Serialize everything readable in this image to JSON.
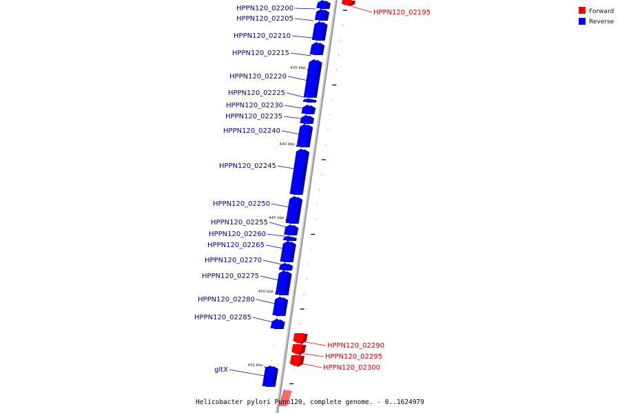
{
  "legend": [
    {
      "label": "Forward",
      "color": "#ff0000"
    },
    {
      "label": "Reverse",
      "color": "#0000ff"
    }
  ],
  "caption": "Helicobacter pylori Puno120, complete genome. - 0..1624979",
  "colors": {
    "forward": "#ff0000",
    "reverse": "#0000ff",
    "forward_label": "#cc0000",
    "reverse_label": "#00008b"
  },
  "genes": [
    {
      "id": "HPPN120_02195",
      "strand": "forward"
    },
    {
      "id": "HPPN120_02200",
      "strand": "reverse"
    },
    {
      "id": "HPPN120_02205",
      "strand": "reverse"
    },
    {
      "id": "HPPN120_02210",
      "strand": "reverse"
    },
    {
      "id": "HPPN120_02215",
      "strand": "reverse"
    },
    {
      "id": "HPPN120_02220",
      "strand": "reverse"
    },
    {
      "id": "HPPN120_02225",
      "strand": "reverse"
    },
    {
      "id": "HPPN120_02230",
      "strand": "reverse"
    },
    {
      "id": "HPPN120_02235",
      "strand": "reverse"
    },
    {
      "id": "HPPN120_02240",
      "strand": "reverse"
    },
    {
      "id": "HPPN120_02245",
      "strand": "reverse"
    },
    {
      "id": "HPPN120_02250",
      "strand": "reverse"
    },
    {
      "id": "HPPN120_02255",
      "strand": "reverse"
    },
    {
      "id": "HPPN120_02260",
      "strand": "reverse"
    },
    {
      "id": "HPPN120_02265",
      "strand": "reverse"
    },
    {
      "id": "HPPN120_02270",
      "strand": "reverse"
    },
    {
      "id": "HPPN120_02275",
      "strand": "reverse"
    },
    {
      "id": "HPPN120_02280",
      "strand": "reverse"
    },
    {
      "id": "HPPN120_02285",
      "strand": "reverse"
    },
    {
      "id": "HPPN120_02290",
      "strand": "forward"
    },
    {
      "id": "HPPN120_02295",
      "strand": "forward"
    },
    {
      "id": "HPPN120_02300",
      "strand": "forward"
    },
    {
      "id": "gltX",
      "strand": "reverse"
    }
  ],
  "scale_labels": [
    "435 kbp",
    "440 kbp",
    "445 kbp",
    "450 kbp",
    "455 kbp"
  ]
}
